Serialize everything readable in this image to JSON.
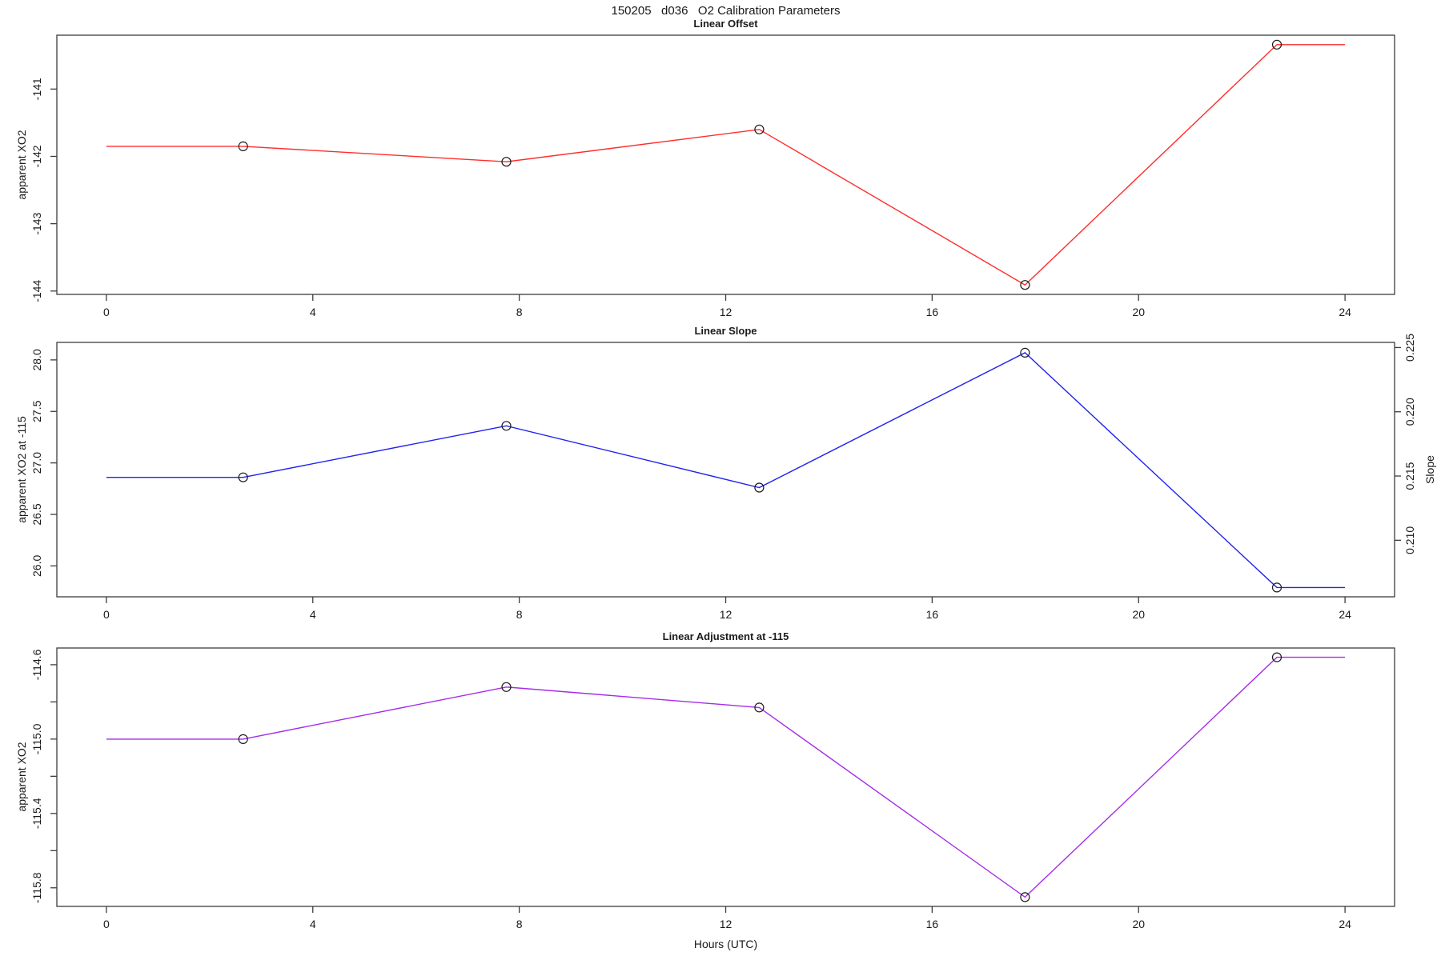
{
  "title": "150205   d036   O2 Calibration Parameters",
  "xlabel": "Hours (UTC)",
  "chart_data": {
    "type": "line",
    "title": "150205   d036   O2 Calibration Parameters",
    "xlabel": "Hours (UTC)",
    "xlim": [
      -0.96,
      24.96
    ],
    "x_ticks": [
      0,
      4,
      8,
      12,
      16,
      20,
      24
    ],
    "x_tick_labels": [
      "0",
      "4",
      "8",
      "12",
      "16",
      "20",
      "24"
    ],
    "grid": "off",
    "legend": "none",
    "panels": [
      {
        "title": "Linear Offset",
        "ylabel": "apparent XO2",
        "line_color": "#ff2d2d",
        "marker": "open-circle",
        "ylim": [
          -144.05,
          -140.2
        ],
        "y_ticks": [
          -144,
          -143,
          -142,
          -141
        ],
        "y_tick_labels": [
          "-144",
          "-143",
          "-142",
          "-141"
        ],
        "x": [
          0,
          2.65,
          7.75,
          12.65,
          17.8,
          22.68,
          24
        ],
        "y": [
          -141.85,
          -141.85,
          -142.08,
          -141.6,
          -143.91,
          -140.34,
          -140.34
        ],
        "marker_indices": [
          1,
          2,
          3,
          4,
          5
        ],
        "note": "flat extrapolation before first and after last measured point"
      },
      {
        "title": "Linear Slope",
        "ylabel": "apparent XO2 at -115",
        "ylabel_right": "Slope",
        "line_color": "#2222ee",
        "marker": "open-circle",
        "ylim": [
          25.7,
          28.17
        ],
        "y_ticks": [
          26.0,
          26.5,
          27.0,
          27.5,
          28.0
        ],
        "y_tick_labels": [
          "26.0",
          "26.5",
          "27.0",
          "27.5",
          "28.0"
        ],
        "y2lim": [
          0.2056,
          0.2254
        ],
        "y2_ticks": [
          0.21,
          0.215,
          0.22,
          0.225
        ],
        "y2_tick_labels": [
          "0.210",
          "0.215",
          "0.220",
          "0.225"
        ],
        "x": [
          0,
          2.65,
          7.75,
          12.65,
          17.8,
          22.68,
          24
        ],
        "y": [
          26.86,
          26.86,
          27.36,
          26.76,
          28.07,
          25.79,
          25.79
        ],
        "marker_indices": [
          1,
          2,
          3,
          4,
          5
        ]
      },
      {
        "title": "Linear Adjustment at -115",
        "ylabel": "apparent XO2",
        "line_color": "#a52ce8",
        "marker": "open-circle",
        "ylim": [
          -115.9,
          -114.51
        ],
        "y_ticks": [
          -115.8,
          -115.4,
          -115.0,
          -114.6
        ],
        "y_tick_labels": [
          "-115.8",
          "-115.4",
          "-115.0",
          "-114.6"
        ],
        "y_minor_ticks": [
          -115.6,
          -115.2,
          -114.8
        ],
        "x": [
          0,
          2.65,
          7.75,
          12.65,
          17.8,
          22.68,
          24
        ],
        "y": [
          -115.0,
          -115.0,
          -114.72,
          -114.83,
          -115.85,
          -114.56,
          -114.56
        ],
        "marker_indices": [
          1,
          2,
          3,
          4,
          5
        ]
      }
    ]
  }
}
